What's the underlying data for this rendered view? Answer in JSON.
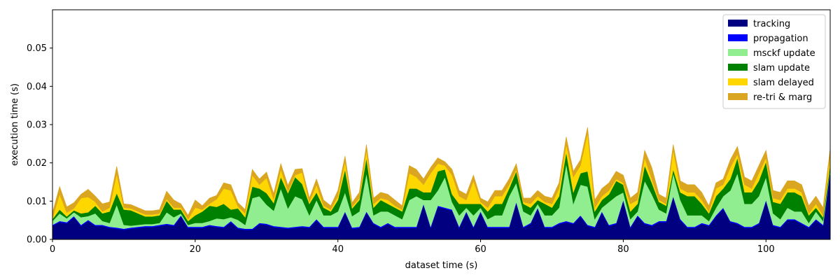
{
  "chart_data": {
    "type": "area",
    "stacked": true,
    "title": "",
    "xlabel": "dataset time (s)",
    "ylabel": "execution time (s)",
    "xlim": [
      0,
      109
    ],
    "ylim": [
      0,
      0.06
    ],
    "xticks": [
      0,
      20,
      40,
      60,
      80,
      100
    ],
    "yticks": [
      0.0,
      0.01,
      0.02,
      0.03,
      0.04,
      0.05
    ],
    "ytick_labels": [
      "0.00",
      "0.01",
      "0.02",
      "0.03",
      "0.04",
      "0.05"
    ],
    "grid": false,
    "legend_position": "top-right",
    "x": [
      0,
      1,
      2,
      3,
      4,
      5,
      6,
      7,
      8,
      9,
      10,
      11,
      12,
      13,
      14,
      15,
      16,
      17,
      18,
      19,
      20,
      21,
      22,
      23,
      24,
      25,
      26,
      27,
      28,
      29,
      30,
      31,
      32,
      33,
      34,
      35,
      36,
      37,
      38,
      39,
      40,
      41,
      42,
      43,
      44,
      45,
      46,
      47,
      48,
      49,
      50,
      51,
      52,
      53,
      54,
      55,
      56,
      57,
      58,
      59,
      60,
      61,
      62,
      63,
      64,
      65,
      66,
      67,
      68,
      69,
      70,
      71,
      72,
      73,
      74,
      75,
      76,
      77,
      78,
      79,
      80,
      81,
      82,
      83,
      84,
      85,
      86,
      87,
      88,
      89,
      90,
      91,
      92,
      93,
      94,
      95,
      96,
      97,
      98,
      99,
      100,
      101,
      102,
      103,
      104,
      105,
      106,
      107,
      108,
      109
    ],
    "series": [
      {
        "name": "tracking",
        "color": "#000080",
        "values": [
          0.0035,
          0.0045,
          0.0042,
          0.0058,
          0.0035,
          0.0048,
          0.0035,
          0.0035,
          0.003,
          0.0028,
          0.0025,
          0.0028,
          0.003,
          0.0032,
          0.0032,
          0.0035,
          0.0038,
          0.0035,
          0.006,
          0.003,
          0.003,
          0.003,
          0.0035,
          0.0032,
          0.003,
          0.0045,
          0.0028,
          0.0025,
          0.0025,
          0.004,
          0.0038,
          0.0032,
          0.003,
          0.0028,
          0.003,
          0.0032,
          0.003,
          0.005,
          0.003,
          0.003,
          0.003,
          0.007,
          0.0028,
          0.003,
          0.007,
          0.004,
          0.003,
          0.004,
          0.003,
          0.003,
          0.003,
          0.003,
          0.009,
          0.003,
          0.0085,
          0.008,
          0.0075,
          0.003,
          0.007,
          0.003,
          0.007,
          0.003,
          0.003,
          0.003,
          0.003,
          0.0095,
          0.003,
          0.004,
          0.008,
          0.003,
          0.003,
          0.004,
          0.0045,
          0.004,
          0.006,
          0.0035,
          0.003,
          0.007,
          0.0035,
          0.004,
          0.01,
          0.003,
          0.006,
          0.004,
          0.0035,
          0.0045,
          0.0045,
          0.011,
          0.005,
          0.003,
          0.003,
          0.004,
          0.0035,
          0.006,
          0.008,
          0.0045,
          0.004,
          0.003,
          0.003,
          0.004,
          0.01,
          0.0035,
          0.003,
          0.005,
          0.005,
          0.004,
          0.003,
          0.005,
          0.0035,
          0.018
        ]
      },
      {
        "name": "propagation",
        "color": "#0000ff",
        "values": [
          0.0003,
          0.0003,
          0.0003,
          0.0003,
          0.0003,
          0.0003,
          0.0003,
          0.0003,
          0.0003,
          0.0003,
          0.0003,
          0.0003,
          0.0003,
          0.0003,
          0.0003,
          0.0003,
          0.0003,
          0.0003,
          0.0003,
          0.0003,
          0.0003,
          0.0003,
          0.0003,
          0.0003,
          0.0003,
          0.0003,
          0.0003,
          0.0003,
          0.0003,
          0.0003,
          0.0003,
          0.0003,
          0.0003,
          0.0003,
          0.0003,
          0.0003,
          0.0003,
          0.0003,
          0.0003,
          0.0003,
          0.0003,
          0.0003,
          0.0003,
          0.0003,
          0.0003,
          0.0003,
          0.0003,
          0.0003,
          0.0003,
          0.0003,
          0.0003,
          0.0003,
          0.0003,
          0.0003,
          0.0003,
          0.0003,
          0.0003,
          0.0003,
          0.0003,
          0.0003,
          0.0003,
          0.0003,
          0.0003,
          0.0003,
          0.0003,
          0.0003,
          0.0003,
          0.0003,
          0.0003,
          0.0003,
          0.0003,
          0.0003,
          0.0003,
          0.0003,
          0.0003,
          0.0003,
          0.0003,
          0.0003,
          0.0003,
          0.0003,
          0.0003,
          0.0003,
          0.0003,
          0.0003,
          0.0003,
          0.0003,
          0.0003,
          0.0003,
          0.0003,
          0.0003,
          0.0003,
          0.0003,
          0.0003,
          0.0003,
          0.0003,
          0.0003,
          0.0003,
          0.0003,
          0.0003,
          0.0003,
          0.0003,
          0.0003,
          0.0003,
          0.0003,
          0.0003,
          0.0003,
          0.0003,
          0.0003,
          0.0003,
          0.0003
        ]
      },
      {
        "name": "msckf update",
        "color": "#90ee90",
        "values": [
          0.001,
          0.002,
          0.001,
          0.001,
          0.002,
          0.001,
          0.003,
          0.001,
          0.001,
          0.006,
          0.001,
          0.0005,
          0.0005,
          0.0005,
          0.0005,
          0.0005,
          0.003,
          0.002,
          0.0005,
          0.0005,
          0.001,
          0.001,
          0.001,
          0.002,
          0.002,
          0.001,
          0.002,
          0.001,
          0.008,
          0.007,
          0.005,
          0.004,
          0.01,
          0.005,
          0.008,
          0.007,
          0.003,
          0.005,
          0.003,
          0.003,
          0.004,
          0.005,
          0.003,
          0.004,
          0.01,
          0.002,
          0.004,
          0.003,
          0.003,
          0.002,
          0.007,
          0.008,
          0.001,
          0.007,
          0.004,
          0.008,
          0.002,
          0.003,
          0.001,
          0.003,
          0.001,
          0.002,
          0.003,
          0.003,
          0.008,
          0.005,
          0.004,
          0.002,
          0.001,
          0.003,
          0.003,
          0.004,
          0.015,
          0.005,
          0.008,
          0.01,
          0.002,
          0.001,
          0.006,
          0.007,
          0.002,
          0.002,
          0.001,
          0.011,
          0.008,
          0.003,
          0.002,
          0.006,
          0.005,
          0.003,
          0.003,
          0.002,
          0.001,
          0.002,
          0.003,
          0.008,
          0.013,
          0.006,
          0.006,
          0.007,
          0.006,
          0.003,
          0.002,
          0.003,
          0.002,
          0.003,
          0.001,
          0.002,
          0.001,
          0.0005
        ]
      },
      {
        "name": "slam update",
        "color": "#008000",
        "values": [
          0.0005,
          0.001,
          0.0005,
          0.0005,
          0.001,
          0.001,
          0.002,
          0.002,
          0.003,
          0.003,
          0.004,
          0.004,
          0.003,
          0.002,
          0.002,
          0.002,
          0.003,
          0.002,
          0.001,
          0.001,
          0.002,
          0.003,
          0.004,
          0.003,
          0.004,
          0.002,
          0.003,
          0.002,
          0.003,
          0.002,
          0.003,
          0.002,
          0.003,
          0.004,
          0.005,
          0.004,
          0.003,
          0.002,
          0.002,
          0.001,
          0.003,
          0.006,
          0.002,
          0.003,
          0.004,
          0.002,
          0.003,
          0.002,
          0.002,
          0.002,
          0.003,
          0.002,
          0.002,
          0.002,
          0.005,
          0.002,
          0.002,
          0.003,
          0.001,
          0.003,
          0.001,
          0.002,
          0.003,
          0.003,
          0.002,
          0.003,
          0.002,
          0.002,
          0.001,
          0.003,
          0.002,
          0.003,
          0.003,
          0.003,
          0.003,
          0.004,
          0.002,
          0.002,
          0.002,
          0.004,
          0.002,
          0.002,
          0.002,
          0.004,
          0.003,
          0.002,
          0.002,
          0.001,
          0.002,
          0.005,
          0.005,
          0.003,
          0.002,
          0.003,
          0.002,
          0.003,
          0.004,
          0.003,
          0.003,
          0.004,
          0.004,
          0.003,
          0.004,
          0.004,
          0.005,
          0.004,
          0.002,
          0.001,
          0.001,
          0.001
        ]
      },
      {
        "name": "slam delayed",
        "color": "#ffd700",
        "values": [
          0.0002,
          0.004,
          0.001,
          0.0005,
          0.004,
          0.004,
          0.001,
          0.0005,
          0.001,
          0.005,
          0.0005,
          0.0005,
          0.0005,
          0.0005,
          0.0005,
          0.0005,
          0.0005,
          0.0005,
          0.0005,
          0.0005,
          0.002,
          0.0005,
          0.0005,
          0.002,
          0.004,
          0.005,
          0.0005,
          0.001,
          0.003,
          0.001,
          0.004,
          0.001,
          0.002,
          0.0005,
          0.0005,
          0.003,
          0.0005,
          0.002,
          0.0005,
          0.0005,
          0.001,
          0.002,
          0.0005,
          0.0005,
          0.002,
          0.001,
          0.0005,
          0.001,
          0.0005,
          0.0005,
          0.004,
          0.003,
          0.002,
          0.005,
          0.002,
          0.001,
          0.005,
          0.002,
          0.001,
          0.006,
          0.0005,
          0.001,
          0.002,
          0.002,
          0.001,
          0.0005,
          0.0005,
          0.001,
          0.001,
          0.0005,
          0.001,
          0.002,
          0.002,
          0.004,
          0.002,
          0.01,
          0.001,
          0.001,
          0.001,
          0.0005,
          0.0005,
          0.002,
          0.001,
          0.002,
          0.001,
          0.0005,
          0.0005,
          0.005,
          0.001,
          0.001,
          0.001,
          0.001,
          0.0005,
          0.002,
          0.001,
          0.003,
          0.001,
          0.002,
          0.001,
          0.002,
          0.001,
          0.001,
          0.001,
          0.001,
          0.001,
          0.001,
          0.0005,
          0.001,
          0.0005,
          0.003
        ]
      },
      {
        "name": "re-tri & marg",
        "color": "#daa520",
        "values": [
          0.0015,
          0.002,
          0.0015,
          0.0015,
          0.001,
          0.002,
          0.0015,
          0.002,
          0.0015,
          0.002,
          0.001,
          0.001,
          0.001,
          0.001,
          0.001,
          0.001,
          0.002,
          0.002,
          0.001,
          0.001,
          0.002,
          0.001,
          0.0015,
          0.001,
          0.0015,
          0.0015,
          0.001,
          0.001,
          0.0015,
          0.0015,
          0.0015,
          0.0015,
          0.0015,
          0.0015,
          0.0015,
          0.001,
          0.001,
          0.0015,
          0.0015,
          0.001,
          0.0015,
          0.0015,
          0.001,
          0.0015,
          0.0015,
          0.0015,
          0.0015,
          0.0015,
          0.0015,
          0.001,
          0.002,
          0.002,
          0.0015,
          0.0015,
          0.0015,
          0.001,
          0.0015,
          0.0015,
          0.0015,
          0.0015,
          0.001,
          0.0015,
          0.0015,
          0.0015,
          0.0015,
          0.0015,
          0.001,
          0.0015,
          0.0015,
          0.0015,
          0.0015,
          0.0015,
          0.002,
          0.0015,
          0.0015,
          0.0015,
          0.002,
          0.002,
          0.002,
          0.002,
          0.002,
          0.0015,
          0.002,
          0.002,
          0.003,
          0.0015,
          0.0015,
          0.0015,
          0.002,
          0.002,
          0.002,
          0.002,
          0.0015,
          0.0015,
          0.0015,
          0.002,
          0.002,
          0.002,
          0.002,
          0.002,
          0.002,
          0.002,
          0.002,
          0.002,
          0.002,
          0.002,
          0.002,
          0.002,
          0.002,
          0.001
        ]
      }
    ]
  }
}
